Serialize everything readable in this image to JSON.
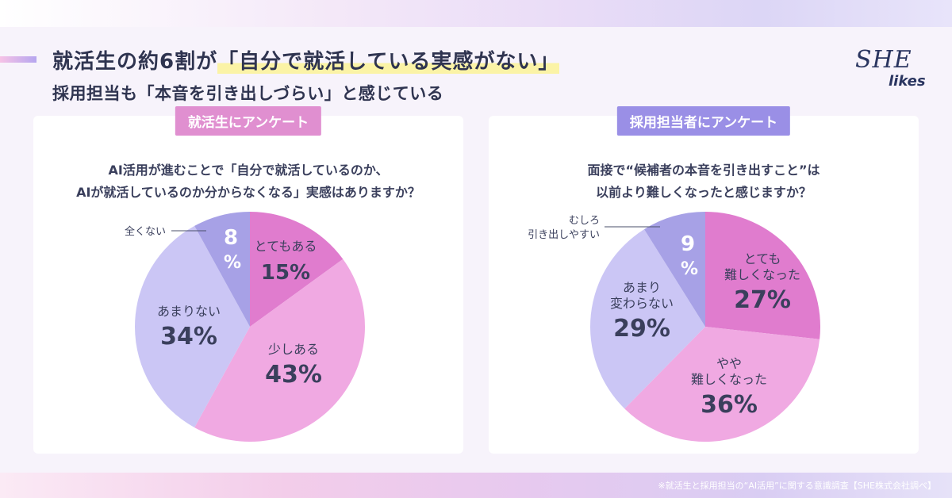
{
  "header": {
    "title_line1_prefix": "就活生の約6割が",
    "title_line1_highlight": "「自分で就活している実感がない」",
    "title_line2": "採用担当も「本音を引き出しづらい」と感じている"
  },
  "logo": {
    "line1": "SHE",
    "line2": "likes"
  },
  "colors": {
    "dark_pink": "#e07cce",
    "light_pink": "#f0a9e2",
    "light_lavender": "#cbc6f5",
    "dark_lavender": "#a7a1e6",
    "text": "#3a3f5c"
  },
  "chart_data": [
    {
      "type": "pie",
      "tag": "就活生にアンケート",
      "question": [
        "AI活用が進むことで「自分で就活しているのか、",
        "AIが就活しているのか分からなくなる」実感はありますか？"
      ],
      "slices": [
        {
          "label": "とてもある",
          "value": 15,
          "color": "#e07cce"
        },
        {
          "label": "少しある",
          "value": 43,
          "color": "#f0a9e2"
        },
        {
          "label": "あまりない",
          "value": 34,
          "color": "#cbc6f5"
        },
        {
          "label": "全くない",
          "value": 8,
          "color": "#a7a1e6"
        }
      ]
    },
    {
      "type": "pie",
      "tag": "採用担当者にアンケート",
      "question": [
        "面接で“候補者の本音を引き出すこと”は",
        "以前より難しくなったと感じますか？"
      ],
      "slices": [
        {
          "label": "とても\n難しくなった",
          "value": 27,
          "color": "#e07cce"
        },
        {
          "label": "やや\n難しくなった",
          "value": 36,
          "color": "#f0a9e2"
        },
        {
          "label": "あまり\n変わらない",
          "value": 29,
          "color": "#cbc6f5"
        },
        {
          "label": "むしろ\n引き出しやすい",
          "value": 9,
          "color": "#a7a1e6"
        }
      ]
    }
  ],
  "footnote": "※就活生と採用担当の“AI活用”に関する意識調査【SHE株式会社調べ】"
}
